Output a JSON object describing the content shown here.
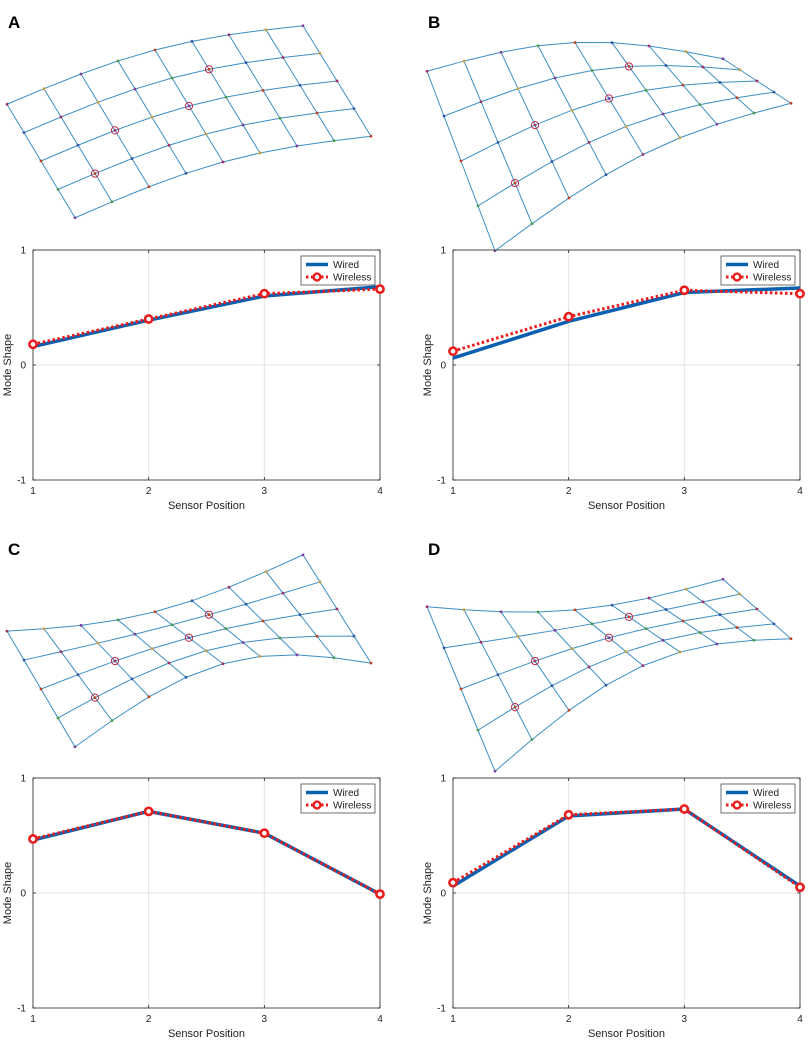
{
  "colors": {
    "wired": "#0a60b0",
    "wireless": "#e81c1c",
    "mesh": "#3d8fc4",
    "grid": "#e4e4e4",
    "axis": "#262626"
  },
  "chart_data": [
    {
      "panel": "A",
      "type": "line",
      "xlabel": "Sensor Position",
      "ylabel": "Mode Shape",
      "x": [
        1,
        2,
        3,
        4
      ],
      "xlim": [
        1,
        4
      ],
      "ylim": [
        -1,
        1
      ],
      "xticks": [
        1,
        2,
        3,
        4
      ],
      "yticks": [
        -1,
        0,
        1
      ],
      "grid": true,
      "legend_position": "top-right",
      "series": [
        {
          "name": "Wired",
          "values": [
            0.16,
            0.39,
            0.6,
            0.68
          ]
        },
        {
          "name": "Wireless",
          "values": [
            0.18,
            0.4,
            0.62,
            0.66
          ]
        }
      ]
    },
    {
      "panel": "B",
      "type": "line",
      "xlabel": "Sensor Position",
      "ylabel": "Mode Shape",
      "x": [
        1,
        2,
        3,
        4
      ],
      "xlim": [
        1,
        4
      ],
      "ylim": [
        -1,
        1
      ],
      "xticks": [
        1,
        2,
        3,
        4
      ],
      "yticks": [
        -1,
        0,
        1
      ],
      "grid": true,
      "legend_position": "top-right",
      "series": [
        {
          "name": "Wired",
          "values": [
            0.06,
            0.38,
            0.63,
            0.67
          ]
        },
        {
          "name": "Wireless",
          "values": [
            0.12,
            0.42,
            0.65,
            0.62
          ]
        }
      ]
    },
    {
      "panel": "C",
      "type": "line",
      "xlabel": "Sensor Position",
      "ylabel": "Mode Shape",
      "x": [
        1,
        2,
        3,
        4
      ],
      "xlim": [
        1,
        4
      ],
      "ylim": [
        -1,
        1
      ],
      "xticks": [
        1,
        2,
        3,
        4
      ],
      "yticks": [
        -1,
        0,
        1
      ],
      "grid": true,
      "legend_position": "top-right",
      "series": [
        {
          "name": "Wired",
          "values": [
            0.46,
            0.71,
            0.52,
            -0.01
          ]
        },
        {
          "name": "Wireless",
          "values": [
            0.47,
            0.71,
            0.52,
            -0.01
          ]
        }
      ]
    },
    {
      "panel": "D",
      "type": "line",
      "xlabel": "Sensor Position",
      "ylabel": "Mode Shape",
      "x": [
        1,
        2,
        3,
        4
      ],
      "xlim": [
        1,
        4
      ],
      "ylim": [
        -1,
        1
      ],
      "xticks": [
        1,
        2,
        3,
        4
      ],
      "yticks": [
        -1,
        0,
        1
      ],
      "grid": true,
      "legend_position": "top-right",
      "series": [
        {
          "name": "Wired",
          "values": [
            0.06,
            0.67,
            0.73,
            0.06
          ]
        },
        {
          "name": "Wireless",
          "values": [
            0.09,
            0.68,
            0.73,
            0.05
          ]
        }
      ]
    }
  ],
  "mesh_modes": [
    {
      "panel": "A",
      "twist": 0.02,
      "wave": 0.0,
      "bend": 0.2
    },
    {
      "panel": "B",
      "twist": 0.9,
      "wave": 0.0,
      "bend": 0.3
    },
    {
      "panel": "C",
      "twist": 0.05,
      "wave": 0.8,
      "bend": 0.15
    },
    {
      "panel": "D",
      "twist": 0.7,
      "wave": 0.75,
      "bend": 0.15
    }
  ]
}
